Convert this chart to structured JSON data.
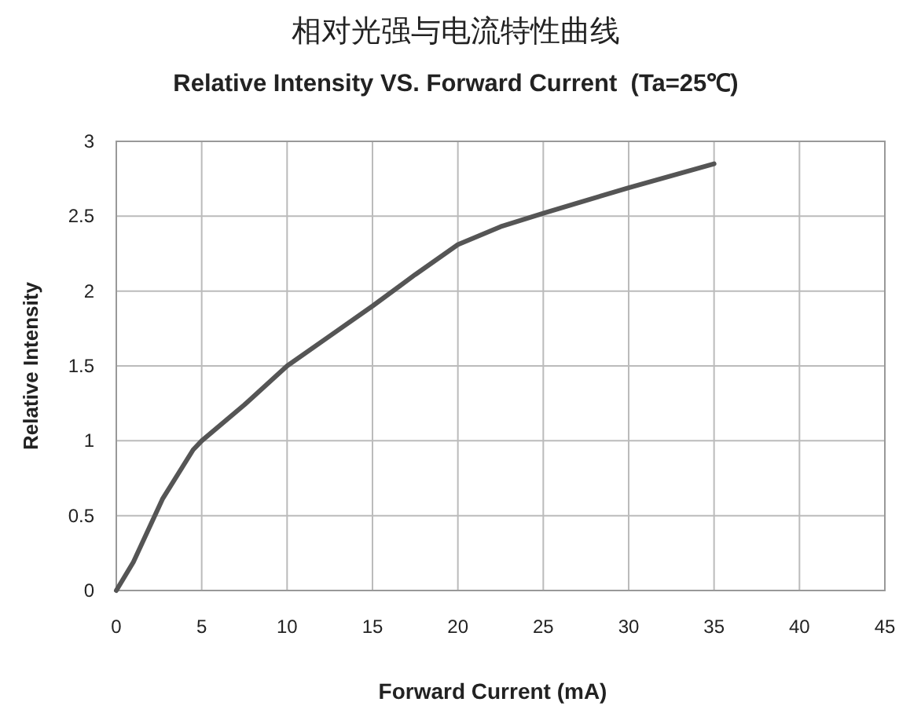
{
  "chart_data": {
    "type": "line",
    "title": "相对光强与电流特性曲线",
    "subtitle": "Relative Intensity VS. Forward Current  (Ta=25℃)",
    "xlabel": "Forward Current (mA)",
    "ylabel": "Relative Intensity",
    "x": [
      0,
      1,
      2.7,
      4.5,
      5,
      7.5,
      10,
      12.5,
      15,
      17.5,
      20,
      22.5,
      25,
      30,
      35
    ],
    "values": [
      0,
      0.19,
      0.61,
      0.94,
      1.0,
      1.24,
      1.5,
      1.7,
      1.9,
      2.11,
      2.31,
      2.43,
      2.52,
      2.69,
      2.85
    ],
    "color": "#555555",
    "xlim": [
      0,
      45
    ],
    "xticks": [
      0,
      5,
      10,
      15,
      20,
      25,
      30,
      35,
      40,
      45
    ],
    "ylim": [
      0,
      3
    ],
    "yticks": [
      0,
      0.5,
      1,
      1.5,
      2,
      2.5,
      3
    ],
    "grid": true
  }
}
